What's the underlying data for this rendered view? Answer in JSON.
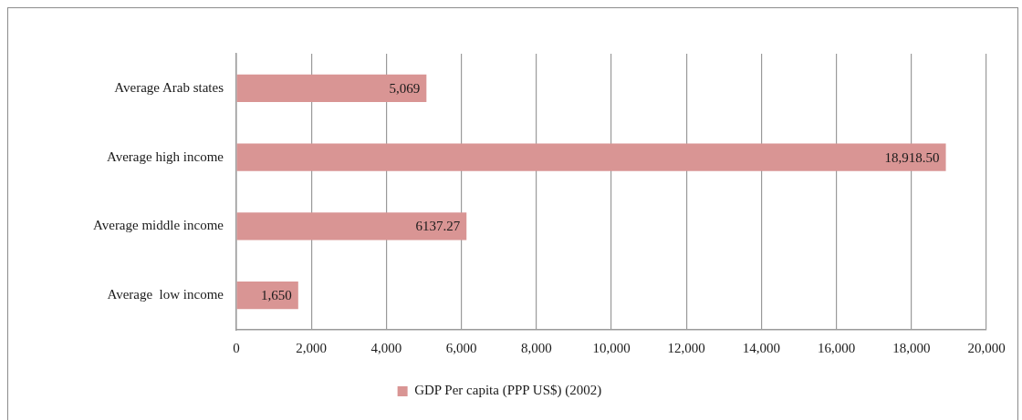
{
  "chart_data": {
    "type": "bar",
    "orientation": "horizontal",
    "categories": [
      "Average Arab states",
      "Average high income",
      "Average middle income",
      "Average  low income"
    ],
    "series": [
      {
        "name": "GDP Per capita (PPP US$) (2002)",
        "color": "#d99594",
        "values": [
          5069,
          18918.5,
          6137.27,
          1650
        ],
        "value_labels": [
          "5,069",
          "18,918.50",
          "6137.27",
          "1,650"
        ]
      }
    ],
    "xlim": [
      0,
      20000
    ],
    "xticks": [
      0,
      {
        "value": 2000,
        "label": "2,000"
      },
      {
        "value": 4000,
        "label": "4,000"
      },
      {
        "value": 6000,
        "label": "6,000"
      },
      {
        "value": 8000,
        "label": "8,000"
      },
      {
        "value": 10000,
        "label": "10,000"
      },
      {
        "value": 12000,
        "label": "12,000"
      },
      {
        "value": 14000,
        "label": "14,000"
      },
      {
        "value": 16000,
        "label": "16,000"
      },
      {
        "value": 18000,
        "label": "18,000"
      },
      {
        "value": 20000,
        "label": "20,000"
      }
    ],
    "grid": "x",
    "legend": "bottom"
  }
}
